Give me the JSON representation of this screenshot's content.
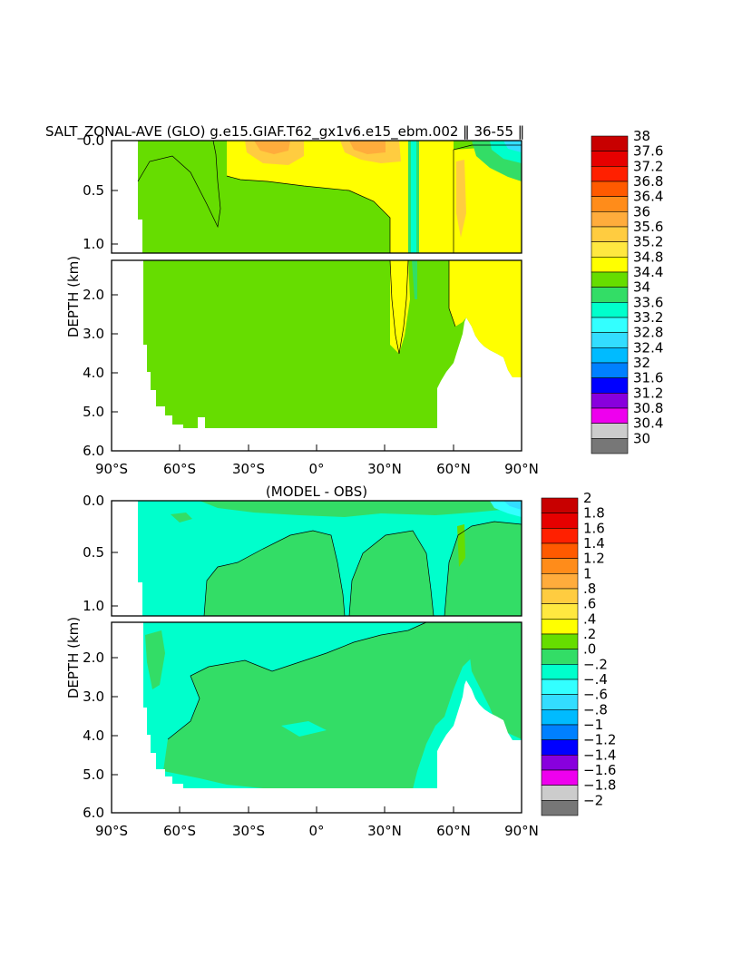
{
  "chart_data": [
    {
      "type": "heatmap",
      "title": "SALT_ZONAL-AVE (GLO) g.e15.GIAF.T62_gx1v6.e15_ebm.002 ‖ 36-55 ‖",
      "xlabel": "",
      "ylabel": "DEPTH (km)",
      "xlim": [
        -90,
        90
      ],
      "ylim": [
        6.0,
        0.0
      ],
      "x_ticks": [
        "90°S",
        "60°S",
        "30°S",
        "0°",
        "30°N",
        "60°N",
        "90°N"
      ],
      "y_ticks_upper": [
        "0.0",
        "0.5",
        "1.0"
      ],
      "y_ticks_lower": [
        "2.0",
        "3.0",
        "4.0",
        "5.0",
        "6.0"
      ],
      "colorbar_levels": [
        "38",
        "37.6",
        "37.2",
        "36.8",
        "36.4",
        "36",
        "35.6",
        "35.2",
        "34.8",
        "34.4",
        "34",
        "33.6",
        "33.2",
        "32.8",
        "32.4",
        "32",
        "31.6",
        "31.2",
        "30.8",
        "30.4",
        "30"
      ],
      "colorbar_colors": [
        "#c80000",
        "#e60000",
        "#ff2000",
        "#ff5a00",
        "#ff8c1a",
        "#ffac3c",
        "#ffcc40",
        "#ffe840",
        "#ffff00",
        "#66dd00",
        "#33dd66",
        "#00ffcc",
        "#33ffff",
        "#33ddff",
        "#00bbff",
        "#0080ff",
        "#0000ff",
        "#8800dd",
        "#ee00ee",
        "#cccccc",
        "#777777"
      ]
    },
    {
      "type": "heatmap",
      "title": "(MODEL - OBS)",
      "xlabel": "",
      "ylabel": "DEPTH (km)",
      "xlim": [
        -90,
        90
      ],
      "ylim": [
        6.0,
        0.0
      ],
      "x_ticks": [
        "90°S",
        "60°S",
        "30°S",
        "0°",
        "30°N",
        "60°N",
        "90°N"
      ],
      "y_ticks_upper": [
        "0.0",
        "0.5",
        "1.0"
      ],
      "y_ticks_lower": [
        "2.0",
        "3.0",
        "4.0",
        "5.0",
        "6.0"
      ],
      "colorbar_levels": [
        "2",
        "1.8",
        "1.6",
        "1.4",
        "1.2",
        "1",
        ".8",
        ".6",
        ".4",
        ".2",
        ".0",
        "−.2",
        "−.4",
        "−.6",
        "−.8",
        "−1",
        "−1.2",
        "−1.4",
        "−1.6",
        "−1.8",
        "−2"
      ],
      "colorbar_colors": [
        "#c80000",
        "#e60000",
        "#ff2000",
        "#ff5a00",
        "#ff8c1a",
        "#ffac3c",
        "#ffcc40",
        "#ffe840",
        "#ffff00",
        "#66dd00",
        "#33dd66",
        "#00ffcc",
        "#33ffff",
        "#33ddff",
        "#00bbff",
        "#0080ff",
        "#0000ff",
        "#8800dd",
        "#ee00ee",
        "#cccccc",
        "#777777"
      ]
    }
  ],
  "field_colors": {
    "green": "#66dd00",
    "yellow": "#ffff00",
    "light_orange": "#ffcc40",
    "orange": "#ffac3c",
    "medium_green": "#33dd66",
    "cyan": "#00ffcc",
    "light_cyan": "#33ffff",
    "blue_cyan": "#33ddff"
  }
}
